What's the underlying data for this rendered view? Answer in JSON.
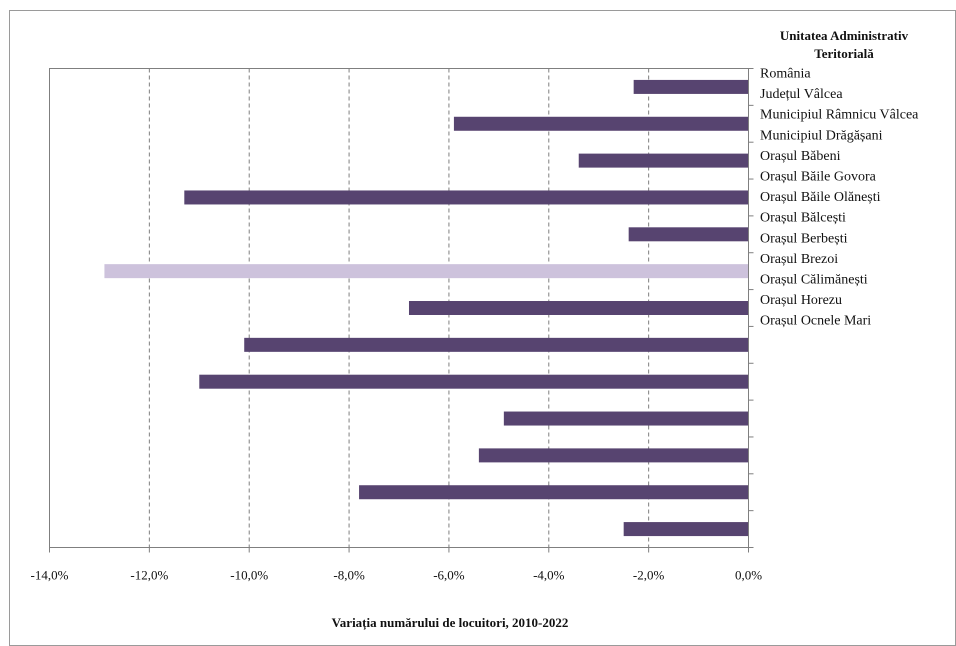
{
  "chart_data": {
    "type": "bar",
    "orientation": "horizontal",
    "title": "",
    "xlabel": "Variația numărului de locuitori, 2010-2022",
    "ylabel": "",
    "xlim": [
      -14.0,
      0.0
    ],
    "x_ticks": [
      -14.0,
      -12.0,
      -10.0,
      -8.0,
      -6.0,
      -4.0,
      -2.0,
      0.0
    ],
    "x_tick_labels": [
      "-14,0%",
      "-12,0%",
      "-10,0%",
      "-8,0%",
      "-6,0%",
      "-4,0%",
      "-2,0%",
      "0,0%"
    ],
    "grid": "vertical-dashed",
    "legend": {
      "placement": "right",
      "title_line1": "Unitatea Administrativ",
      "title_line2": "Teritorială"
    },
    "categories": [
      "România",
      "Județul Vâlcea",
      "Municipiul Râmnicu Vâlcea",
      "Municipiul Drăgășani",
      "Orașul Băbeni",
      "Orașul Băile Govora",
      "Orașul Băile Olănești",
      "Orașul Bălcești",
      "Orașul Berbești",
      "Orașul Brezoi",
      "Orașul Călimănești",
      "Orașul Horezu",
      "Orașul Ocnele Mari"
    ],
    "values": [
      -2.3,
      -5.9,
      -3.4,
      -11.3,
      -2.4,
      -12.9,
      -6.8,
      -10.1,
      -11.0,
      -4.9,
      -5.4,
      -7.8,
      -2.5
    ],
    "bar_colors": [
      "#574470",
      "#574470",
      "#574470",
      "#574470",
      "#574470",
      "#cdc2dc",
      "#574470",
      "#574470",
      "#574470",
      "#574470",
      "#574470",
      "#574470",
      "#574470"
    ],
    "colors": {
      "bar": "#574470",
      "highlight": "#cdc2dc",
      "grid": "#7f7f7f",
      "axis": "#7f7f7f"
    }
  }
}
